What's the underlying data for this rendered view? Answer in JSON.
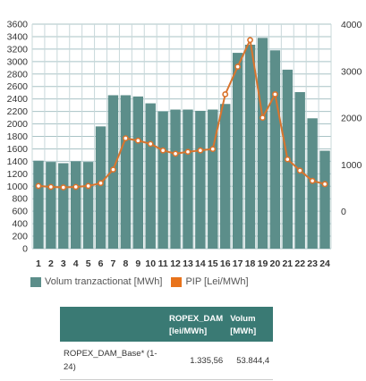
{
  "chart_data": {
    "type": "bar",
    "categories": [
      "1",
      "2",
      "3",
      "4",
      "5",
      "6",
      "7",
      "8",
      "9",
      "10",
      "11",
      "12",
      "13",
      "14",
      "15",
      "16",
      "17",
      "18",
      "19",
      "20",
      "21",
      "22",
      "23",
      "24"
    ],
    "series": [
      {
        "name": "Volum tranzactionat [MWh]",
        "type": "bar",
        "axis": "left",
        "color": "#5c8e8a",
        "values": [
          1410,
          1390,
          1370,
          1400,
          1390,
          1960,
          2460,
          2460,
          2440,
          2330,
          2200,
          2230,
          2230,
          2210,
          2230,
          2320,
          3140,
          3270,
          3380,
          3180,
          2870,
          2510,
          2090,
          1570
        ]
      },
      {
        "name": "PIP [Lei/MWh]",
        "type": "line",
        "axis": "right",
        "color": "#d9742d",
        "values": [
          540,
          520,
          510,
          520,
          540,
          600,
          890,
          1560,
          1510,
          1440,
          1300,
          1230,
          1270,
          1300,
          1330,
          2500,
          3090,
          3660,
          2000,
          2500,
          1110,
          870,
          650,
          580
        ]
      }
    ],
    "y_left": {
      "min": 0,
      "max": 3600,
      "ticks": [
        0,
        200,
        400,
        600,
        800,
        1000,
        1200,
        1400,
        1600,
        1800,
        2000,
        2200,
        2400,
        2600,
        2800,
        3000,
        3200,
        3400,
        3600
      ]
    },
    "y_right": {
      "min": -800,
      "max": 4000,
      "ticks": [
        0,
        1000,
        2000,
        3000,
        4000
      ]
    },
    "grid": true,
    "legend": "bottom"
  },
  "table": {
    "headers": [
      "",
      "ROPEX_DAM [lei/MWh]",
      "Volum [MWh]"
    ],
    "rows": [
      {
        "label": "ROPEX_DAM_Base* (1-24)",
        "price": "1.335,56",
        "volume": "53.844,4"
      }
    ]
  }
}
